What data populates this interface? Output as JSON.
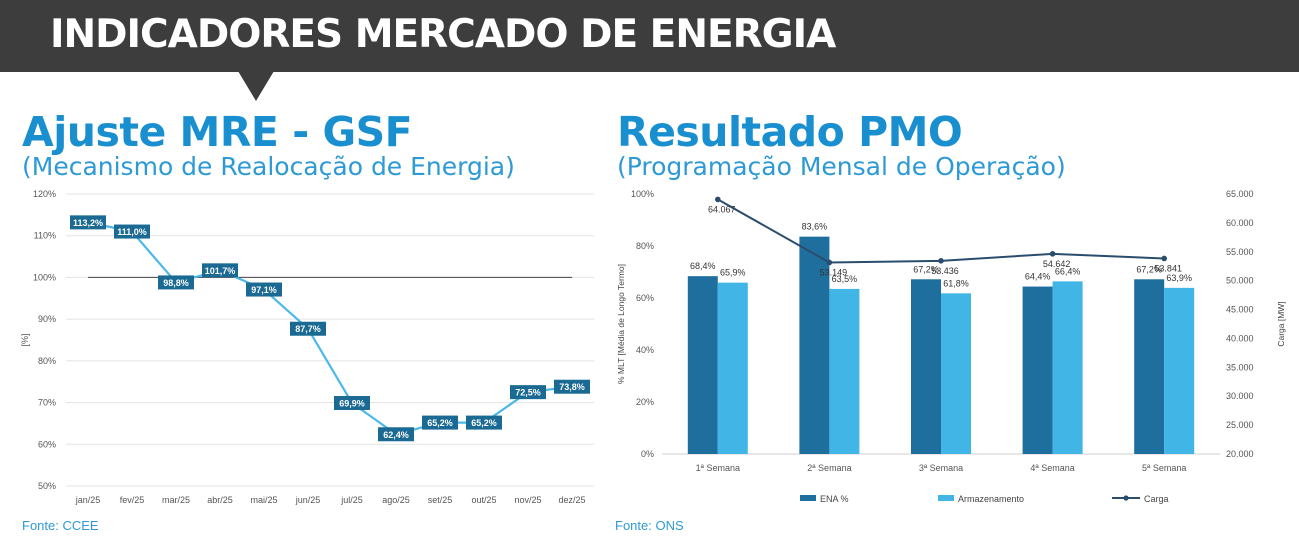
{
  "header": {
    "title": "INDICADORES MERCADO DE ENERGIA"
  },
  "colors": {
    "header_bg": "#3d3d3d",
    "title_blue": "#1a8fd0",
    "line_light": "#4ab8e8",
    "label_dark": "#1b6a94",
    "bar_dark": "#1f6f9e",
    "bar_light": "#41b6e6",
    "carga_line": "#2a4d6e"
  },
  "left_panel": {
    "title": "Ajuste MRE - GSF",
    "subtitle": "(Mecanismo de Realocação de Energia)",
    "source": "Fonte: CCEE"
  },
  "right_panel": {
    "title": "Resultado PMO",
    "subtitle": "(Programação Mensal de Operação)",
    "source": "Fonte: ONS"
  },
  "chart_data": [
    {
      "type": "line",
      "title": "",
      "xlabel": "",
      "ylabel": "[%]",
      "categories": [
        "jan/25",
        "fev/25",
        "mar/25",
        "abr/25",
        "mai/25",
        "jun/25",
        "jul/25",
        "ago/25",
        "set/25",
        "out/25",
        "nov/25",
        "dez/25"
      ],
      "series": [
        {
          "values": [
            113.2,
            111.0,
            98.8,
            101.7,
            97.1,
            87.7,
            69.9,
            62.4,
            65.2,
            65.2,
            72.5,
            73.8
          ],
          "labels": [
            "113,2%",
            "111,0%",
            "98,8%",
            "101,7%",
            "97,1%",
            "87,7%",
            "69,9%",
            "62,4%",
            "65,2%",
            "65,2%",
            "72,5%",
            "73,8%"
          ]
        }
      ],
      "reference_line": 100,
      "ylim": [
        50,
        120
      ],
      "yticks": [
        "50%",
        "60%",
        "70%",
        "80%",
        "90%",
        "100%",
        "110%",
        "120%"
      ],
      "grid": "horizontal"
    },
    {
      "type": "bar",
      "title": "",
      "xlabel": "",
      "ylabel": "% MLT [Média de Longo Termo]",
      "y2label": "Carga [MW]",
      "categories": [
        "1ª Semana",
        "2ª Semana",
        "3ª Semana",
        "4ª Semana",
        "5ª Semana"
      ],
      "series": [
        {
          "name": "ENA %",
          "values": [
            68.4,
            83.6,
            67.2,
            64.4,
            67.2
          ],
          "labels": [
            "68,4%",
            "83,6%",
            "67,2%",
            "64,4%",
            "67,2%"
          ]
        },
        {
          "name": "Armazenamento",
          "values": [
            65.9,
            63.5,
            61.8,
            66.4,
            63.9
          ],
          "labels": [
            "65,9%",
            "63,5%",
            "61,8%",
            "66,4%",
            "63,9%"
          ]
        },
        {
          "name": "Carga",
          "type": "line",
          "axis": "right",
          "values": [
            64067,
            53149,
            53436,
            54642,
            53841
          ],
          "labels": [
            "64.067",
            "53.149",
            "53.436",
            "54.642",
            "53.841"
          ]
        }
      ],
      "ylim": [
        0,
        100
      ],
      "yticks": [
        "0%",
        "20%",
        "40%",
        "60%",
        "80%",
        "100%"
      ],
      "y2lim": [
        20000,
        65000
      ],
      "y2ticks": [
        "20.000",
        "25.000",
        "30.000",
        "35.000",
        "40.000",
        "45.000",
        "50.000",
        "55.000",
        "60.000",
        "65.000"
      ],
      "legend": "bottom"
    }
  ]
}
